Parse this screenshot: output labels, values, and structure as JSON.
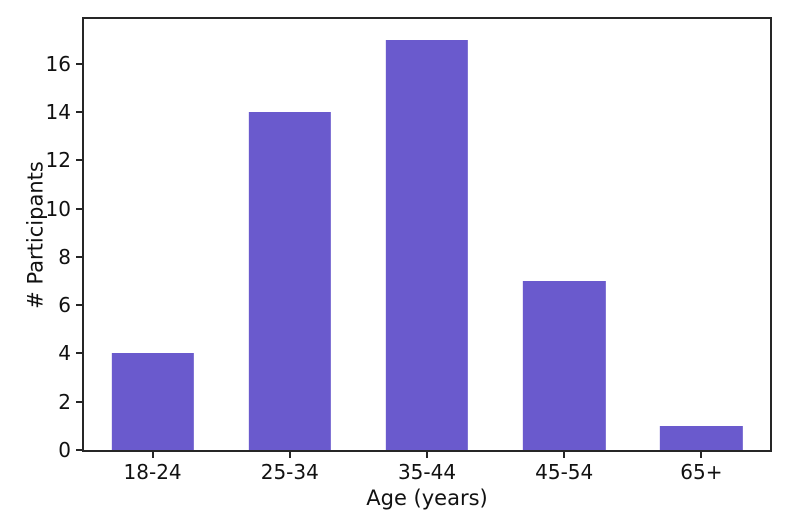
{
  "chart_data": {
    "type": "bar",
    "categories": [
      "18-24",
      "25-34",
      "35-44",
      "45-54",
      "65+"
    ],
    "values": [
      4,
      14,
      17,
      7,
      1
    ],
    "title": "",
    "xlabel": "Age (years)",
    "ylabel": "# Participants",
    "ylim": [
      0,
      17.85
    ],
    "yticks": [
      0,
      2,
      4,
      6,
      8,
      10,
      12,
      14,
      16
    ],
    "bar_width_fraction": 0.6,
    "grid": false,
    "legend": null,
    "colors": {
      "bar": "#6A5ACD",
      "spine": "#262626",
      "text": "#111111",
      "background": "#ffffff"
    }
  }
}
